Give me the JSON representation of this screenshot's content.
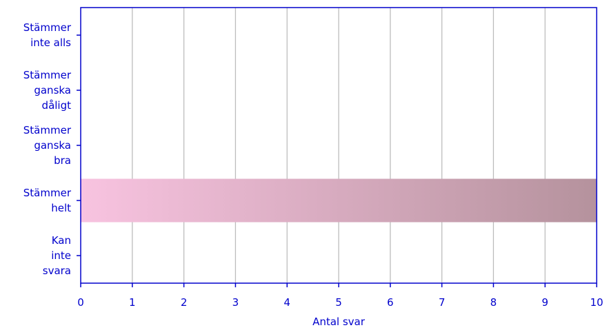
{
  "chart_data": {
    "type": "bar",
    "orientation": "horizontal",
    "categories": [
      [
        "Stämmer",
        "inte alls"
      ],
      [
        "Stämmer",
        "ganska",
        "dåligt"
      ],
      [
        "Stämmer",
        "ganska",
        "bra"
      ],
      [
        "Stämmer",
        "helt"
      ],
      [
        "Kan",
        "inte",
        "svara"
      ]
    ],
    "values": [
      0,
      0,
      0,
      10,
      0
    ],
    "xlabel": "Antal svar",
    "ylabel": "",
    "xlim": [
      0,
      10
    ],
    "xticks": [
      "0",
      "1",
      "2",
      "3",
      "4",
      "5",
      "6",
      "7",
      "8",
      "9",
      "10"
    ],
    "grid": "vertical",
    "colors": {
      "axis": "#0000cc",
      "text": "#0000cc",
      "grid": "#bdbdbd",
      "bar_start": "#f8c3e0",
      "bar_end": "#b5929d"
    }
  }
}
